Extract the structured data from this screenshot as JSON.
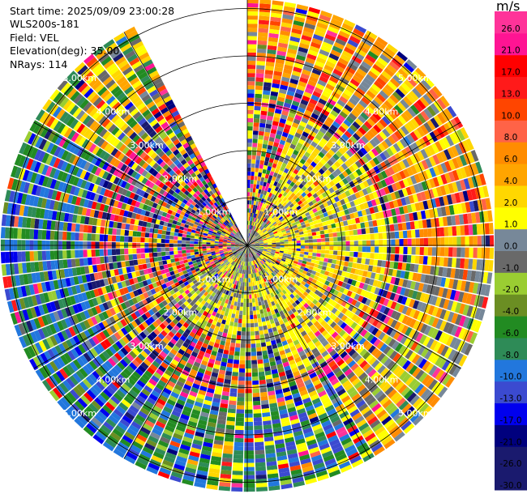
{
  "header": {
    "start_time": "Start time: 2025/09/09 23:00:28",
    "instrument": "WLS200s-181",
    "field": "Field: VEL",
    "elevation": "Elevation(deg): 35.00",
    "nrays": "NRays: 114"
  },
  "colorbar": {
    "unit": "m/s",
    "bins": [
      {
        "label": "-30.0",
        "color": "#1a1a6e"
      },
      {
        "label": "-26.0",
        "color": "#1a1a6e"
      },
      {
        "label": "-21.0",
        "color": "#00007e"
      },
      {
        "label": "-17.0",
        "color": "#0000ee"
      },
      {
        "label": "-13.0",
        "color": "#3b4ad0"
      },
      {
        "label": "-10.0",
        "color": "#2277dd"
      },
      {
        "label": "-8.0",
        "color": "#2e8b57"
      },
      {
        "label": "-6.0",
        "color": "#228b22"
      },
      {
        "label": "-4.0",
        "color": "#6b8e23"
      },
      {
        "label": "-2.0",
        "color": "#9acd32"
      },
      {
        "label": "-1.0",
        "color": "#696969"
      },
      {
        "label": "0.0",
        "color": "#778899"
      },
      {
        "label": "1.0",
        "color": "#ffff00"
      },
      {
        "label": "2.0",
        "color": "#ffd700"
      },
      {
        "label": "4.0",
        "color": "#ffa500"
      },
      {
        "label": "6.0",
        "color": "#ff8c00"
      },
      {
        "label": "8.0",
        "color": "#ff6347"
      },
      {
        "label": "10.0",
        "color": "#ff4500"
      },
      {
        "label": "13.0",
        "color": "#ff1a1a"
      },
      {
        "label": "17.0",
        "color": "#ff0000"
      },
      {
        "label": "21.0",
        "color": "#ff1493"
      },
      {
        "label": "26.0",
        "color": "#ff3399"
      }
    ]
  },
  "chart_data": {
    "type": "heatmap",
    "projection": "polar-ppi",
    "field": "VEL",
    "elevation_deg": 35.0,
    "nrays": 114,
    "range_rings_km": [
      1.0,
      2.0,
      3.0,
      4.0,
      5.0
    ],
    "ring_labels": [
      "1.00km",
      "2.00km",
      "3.00km",
      "4.00km",
      "5.00km"
    ],
    "max_range_km": 5.2,
    "spokes_deg": [
      0,
      30,
      60,
      90,
      120,
      150,
      180,
      210,
      240,
      270,
      300,
      330
    ],
    "missing_sector_deg": [
      333,
      360
    ],
    "dominant_regions": [
      {
        "azimuth_deg": [
          0,
          90
        ],
        "range_km": [
          3.5,
          5.2
        ],
        "velocity_ms": "6.0 to 17.0"
      },
      {
        "azimuth_deg": [
          20,
          160
        ],
        "range_km": [
          0.3,
          3.0
        ],
        "velocity_ms": "1.0 to 4.0"
      },
      {
        "azimuth_deg": [
          190,
          290
        ],
        "range_km": [
          3.5,
          5.2
        ],
        "velocity_ms": "-13.0 to -4.0"
      },
      {
        "azimuth_deg": [
          290,
          333
        ],
        "range_km": [
          3.0,
          5.2
        ],
        "velocity_ms": "-1.0 to 6.0"
      }
    ]
  }
}
